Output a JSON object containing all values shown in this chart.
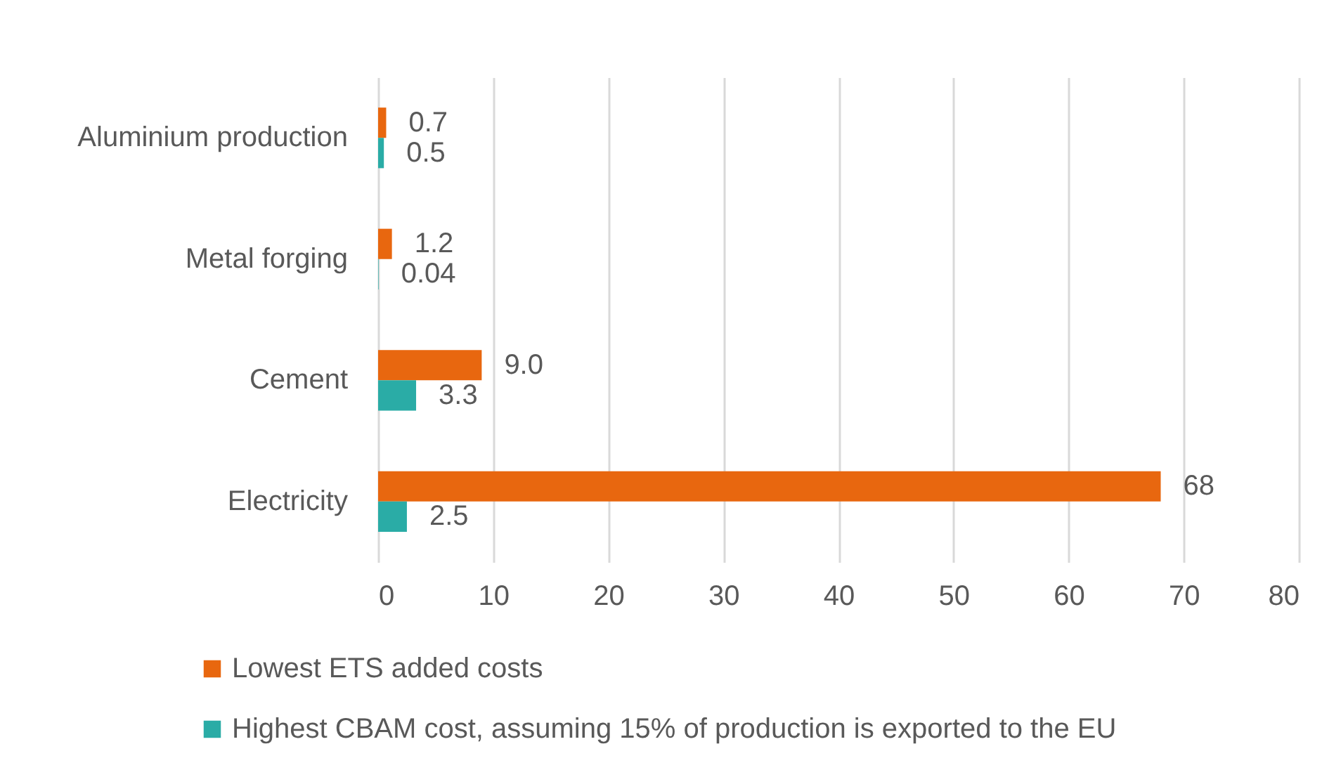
{
  "chart_data": {
    "type": "bar",
    "orientation": "horizontal",
    "categories": [
      "Aluminium production",
      "Metal forging",
      "Cement",
      "Electricity"
    ],
    "series": [
      {
        "name": "Lowest ETS added costs",
        "color": "#e8670f",
        "values": [
          0.7,
          1.2,
          9.0,
          68
        ],
        "value_labels": [
          "0.7",
          "1.2",
          "9.0",
          "68"
        ]
      },
      {
        "name": "Highest CBAM cost, assuming 15% of production is exported to the EU",
        "color": "#2aaca6",
        "values": [
          0.5,
          0.04,
          3.3,
          2.5
        ],
        "value_labels": [
          "0.5",
          "0.04",
          "3.3",
          "2.5"
        ]
      }
    ],
    "xlim": [
      0,
      80
    ],
    "xticks": [
      0,
      10,
      20,
      30,
      40,
      50,
      60,
      70,
      80
    ],
    "grid": "x",
    "legend": "bottom"
  }
}
